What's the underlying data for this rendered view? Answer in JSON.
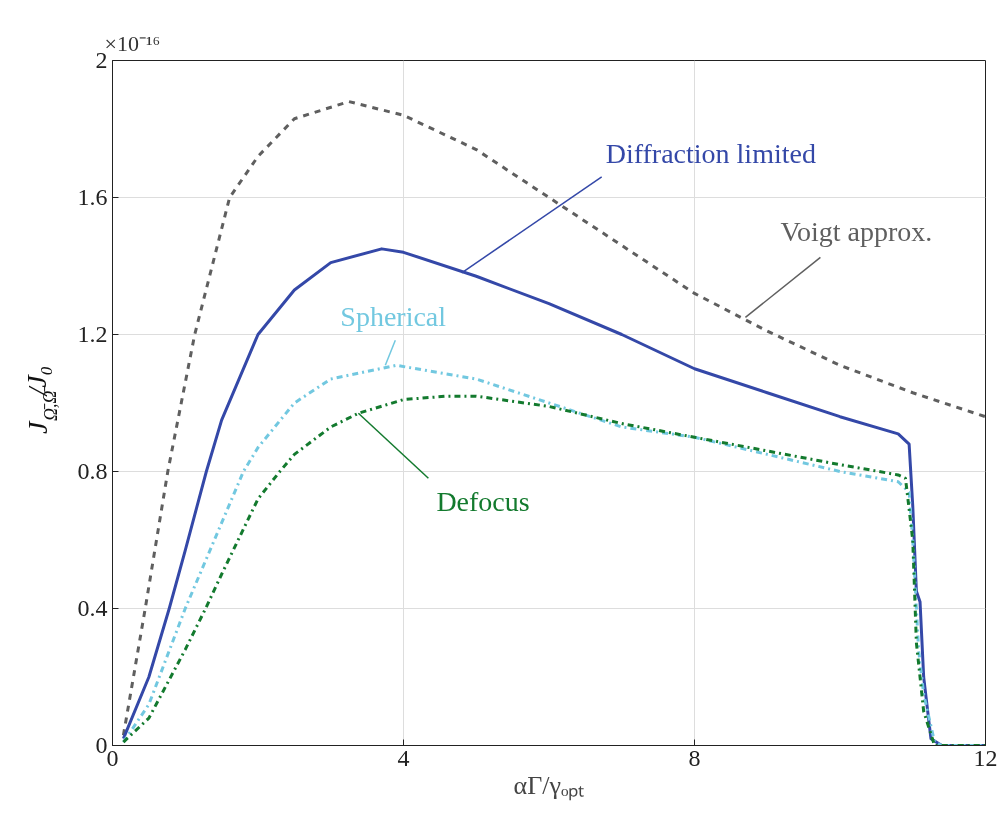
{
  "chart_data": {
    "type": "line",
    "xlabel": "αΓ/γₒₚₜ",
    "ylabel": "J$_{Ω̄,Ω̄}$/J₀",
    "xlim": [
      0,
      12
    ],
    "ylim": [
      0,
      2
    ],
    "xticks": [
      0,
      4,
      8,
      12
    ],
    "yticks": [
      0,
      0.4,
      0.8,
      1.2,
      1.6,
      2
    ],
    "grid": true,
    "series": [
      {
        "color": "#5f5f5f",
        "line_style": "dashed",
        "x": [
          0.15,
          0.45,
          0.76,
          1.13,
          1.61,
          2,
          2.5,
          3.25,
          4,
          5,
          6,
          7,
          8,
          9,
          10,
          11,
          12
        ],
        "values": [
          0.03,
          0.4,
          0.8,
          1.2,
          1.6,
          1.72,
          1.83,
          1.88,
          1.84,
          1.74,
          1.6,
          1.46,
          1.32,
          1.21,
          1.11,
          1.03,
          0.96
        ]
      },
      {
        "color": "#3448a8",
        "line_style": "solid",
        "x": [
          0.15,
          0.5,
          0.78,
          1,
          1.29,
          1.5,
          2,
          2.5,
          3,
          3.7,
          4,
          5,
          6,
          7,
          8,
          9,
          10,
          10.8,
          10.95,
          11,
          11.05,
          11.1,
          11.15,
          11.25,
          11.4,
          12
        ],
        "values": [
          0.02,
          0.2,
          0.4,
          0.57,
          0.8,
          0.95,
          1.2,
          1.33,
          1.41,
          1.45,
          1.44,
          1.37,
          1.29,
          1.2,
          1.1,
          1.03,
          0.96,
          0.91,
          0.88,
          0.7,
          0.45,
          0.42,
          0.2,
          0.02,
          0,
          0
        ]
      },
      {
        "color": "#72c8e0",
        "line_style": "dashdot",
        "x": [
          0.15,
          0.5,
          1,
          1.5,
          1.8,
          2,
          2.5,
          3,
          3.9,
          5,
          6,
          7,
          8,
          9,
          10,
          10.8,
          10.95,
          11,
          11.05,
          11.08,
          11.15,
          11.3,
          11.4,
          12
        ],
        "values": [
          0.01,
          0.12,
          0.4,
          0.65,
          0.8,
          0.87,
          1,
          1.07,
          1.11,
          1.07,
          1,
          0.93,
          0.9,
          0.85,
          0.8,
          0.77,
          0.74,
          0.6,
          0.4,
          0.28,
          0.15,
          0.01,
          0,
          0
        ]
      },
      {
        "color": "#137a2e",
        "line_style": "dashdot",
        "x": [
          0.15,
          0.5,
          1,
          1.28,
          1.5,
          2,
          2.3,
          2.5,
          3,
          3.38,
          4,
          4.6,
          5,
          6,
          7,
          8,
          9,
          10,
          10.8,
          10.9,
          11,
          11.05,
          11.15,
          11.3,
          12
        ],
        "values": [
          0.01,
          0.08,
          0.28,
          0.4,
          0.5,
          0.72,
          0.8,
          0.85,
          0.93,
          0.97,
          1.01,
          1.02,
          1.02,
          0.99,
          0.94,
          0.9,
          0.86,
          0.82,
          0.79,
          0.78,
          0.6,
          0.3,
          0.1,
          0,
          0
        ]
      }
    ],
    "annotations": [
      "×10⁻¹⁶",
      {
        "text": "Diffraction limited",
        "x": 4.8,
        "y": 1.38
      },
      {
        "text": "Voigt approx.",
        "x": 8.7,
        "y": 1.25
      },
      {
        "text": "Spherical",
        "x": 3.75,
        "y": 1.11
      },
      {
        "text": "Defocus",
        "x": 3.38,
        "y": 0.97
      }
    ]
  }
}
